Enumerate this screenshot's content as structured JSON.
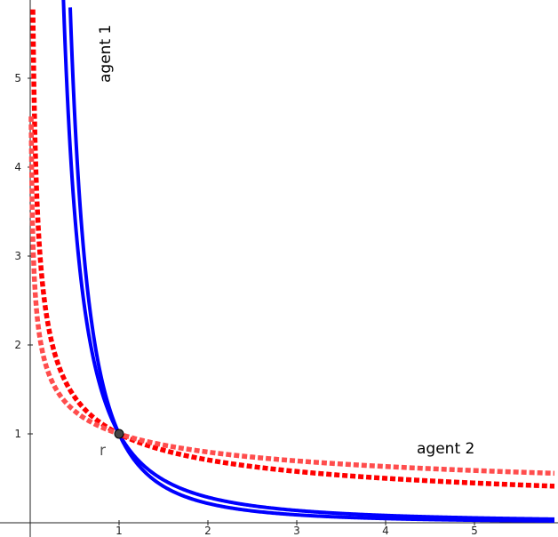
{
  "chart_data": {
    "type": "line",
    "title": "",
    "xlabel": "",
    "ylabel": "",
    "xlim": [
      -0.3,
      5.9
    ],
    "ylim": [
      -0.15,
      5.85
    ],
    "grid": false,
    "x_ticks": [
      "1",
      "2",
      "3",
      "4",
      "5"
    ],
    "y_ticks": [
      "1",
      "2",
      "3",
      "4",
      "5"
    ],
    "series": [
      {
        "name": "agent 1",
        "color": "#0000ff",
        "style": "solid",
        "function": "x^-2.2",
        "x_range": [
          0.35,
          5.9
        ]
      },
      {
        "name": "agent 1",
        "color": "#0000ff",
        "style": "solid",
        "function": "x^-1.8",
        "x_range": [
          0.35,
          5.9
        ]
      },
      {
        "name": "agent 2",
        "color": "#ff0000",
        "style": "dotted",
        "function": "x^-0.5",
        "x_range": [
          0.03,
          5.9
        ]
      },
      {
        "name": "agent 2",
        "color": "#ff4d4d",
        "style": "dotted",
        "function": "x^-0.33",
        "x_range": [
          0.01,
          5.9
        ]
      }
    ],
    "point": {
      "label": "r",
      "x": 1,
      "y": 1
    },
    "annotations": [
      {
        "text": "agent 1",
        "x": 0.9,
        "y": 4.95,
        "rotated": true
      },
      {
        "text": "agent 2",
        "x": 4.35,
        "y": 0.78
      }
    ]
  }
}
